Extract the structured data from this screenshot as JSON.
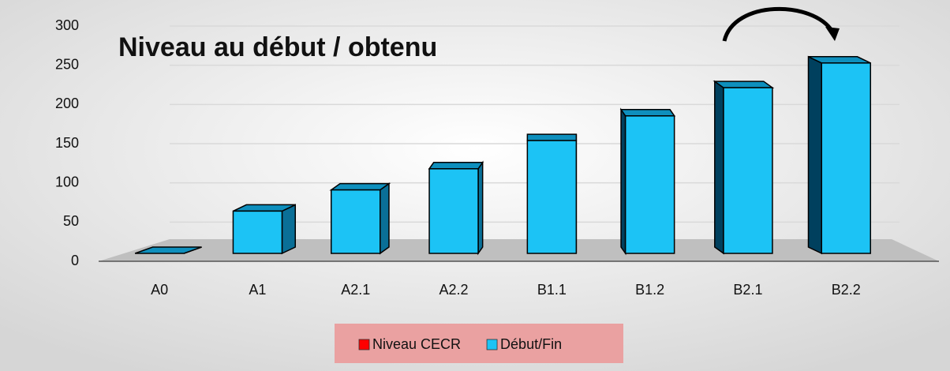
{
  "chart_data": {
    "type": "bar3d",
    "title": "Niveau au début / obtenu",
    "categories": [
      "A0",
      "A1",
      "A2.1",
      "A2.2",
      "B1.1",
      "B1.2",
      "B2.1",
      "B2.2"
    ],
    "series": [
      {
        "name": "Niveau CECR",
        "color": "#ff0000",
        "values": [
          null,
          null,
          null,
          null,
          null,
          null,
          null,
          null
        ]
      },
      {
        "name": "Début/Fin",
        "color": "#1cc3f5",
        "values": [
          0,
          60,
          90,
          120,
          160,
          195,
          235,
          270
        ]
      }
    ],
    "ylim": [
      0,
      300
    ],
    "yticks": [
      0,
      50,
      100,
      150,
      200,
      250,
      300
    ],
    "grid": true
  }
}
